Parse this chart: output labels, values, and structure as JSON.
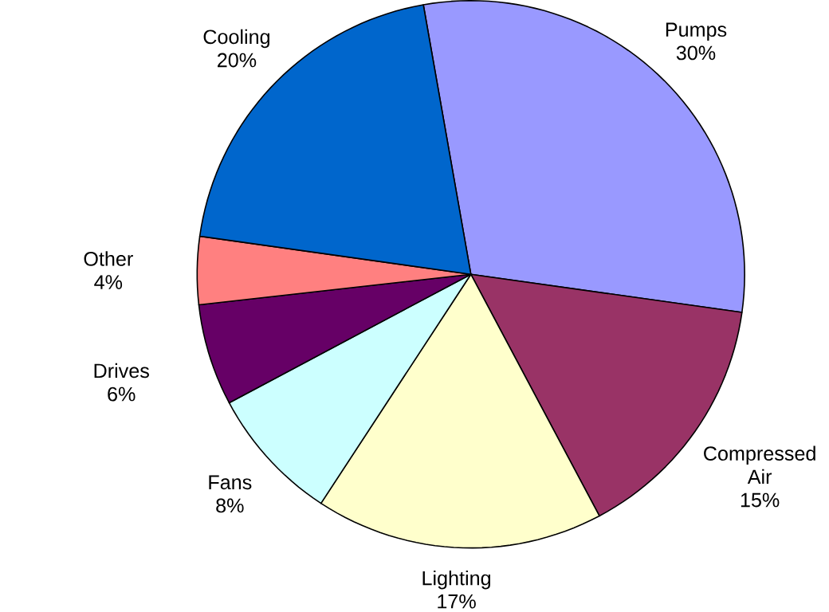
{
  "chart_data": {
    "type": "pie",
    "categories": [
      "Pumps",
      "Compressed Air",
      "Lighting",
      "Fans",
      "Drives",
      "Other",
      "Cooling"
    ],
    "values": [
      30,
      15,
      17,
      8,
      6,
      4,
      20
    ],
    "value_labels": [
      "30%",
      "15%",
      "17%",
      "8%",
      "6%",
      "4%",
      "20%"
    ],
    "colors": [
      "#9999ff",
      "#993366",
      "#ffffcc",
      "#ccffff",
      "#660066",
      "#ff8080",
      "#0066cc"
    ]
  }
}
